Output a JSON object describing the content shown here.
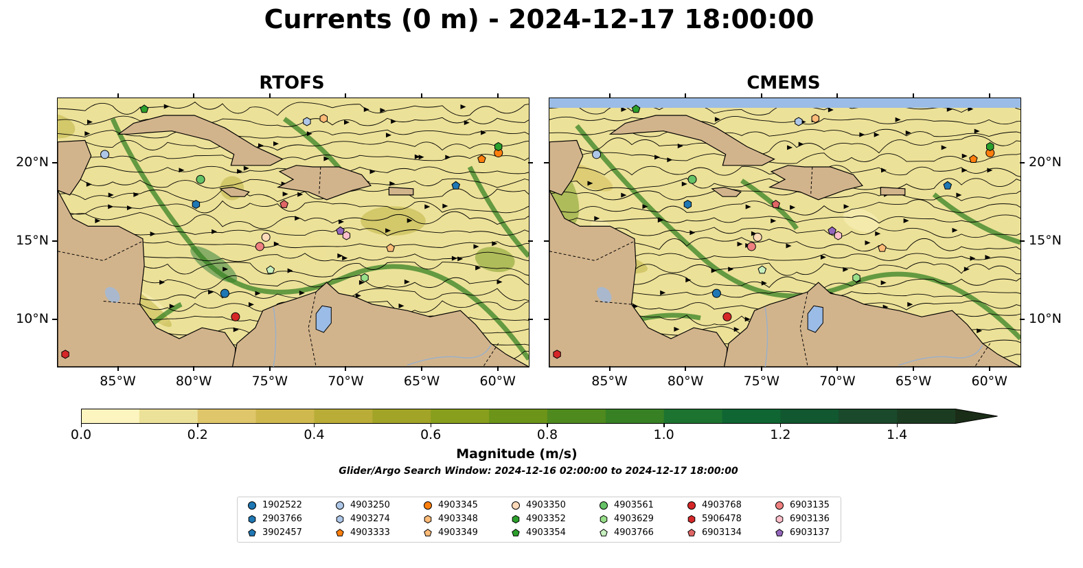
{
  "title": "Currents (0 m) - 2024-12-17 18:00:00",
  "panels": [
    {
      "title": "RTOFS"
    },
    {
      "title": "CMEMS"
    }
  ],
  "map_data": {
    "lon_range": [
      -89,
      -58
    ],
    "lat_range": [
      7,
      24.2
    ],
    "lon_ticks": [
      "85°W",
      "80°W",
      "75°W",
      "70°W",
      "65°W",
      "60°W"
    ],
    "lat_ticks": [
      "20°N",
      "15°N",
      "10°N"
    ],
    "land_color": "#d2b48c",
    "water_color": "#9bbce6"
  },
  "colorbar": {
    "label": "Magnitude (m/s)",
    "ticks": [
      "0.0",
      "0.2",
      "0.4",
      "0.6",
      "0.8",
      "1.0",
      "1.2",
      "1.4"
    ],
    "tick_values": [
      0,
      0.2,
      0.4,
      0.6,
      0.8,
      1.0,
      1.2,
      1.4
    ],
    "range": [
      0,
      1.5
    ],
    "extend": "max",
    "colors": [
      "#fdf5c0",
      "#ece198",
      "#dfc66a",
      "#cfb84e",
      "#b9ad38",
      "#a2a427",
      "#879f1c",
      "#6c9418",
      "#4f8a1f",
      "#378124",
      "#1c7430",
      "#0f6633",
      "#115730",
      "#1a4a2b",
      "#1c3c22",
      "#1a2d17"
    ]
  },
  "search_window": "Glider/Argo Search Window: 2024-12-16 02:00:00 to 2024-12-17 18:00:00",
  "legend": {
    "items": [
      {
        "id": "1902522",
        "marker": "circle",
        "color": "#1f77b4"
      },
      {
        "id": "2903766",
        "marker": "hexagon",
        "color": "#1f77b4"
      },
      {
        "id": "3902457",
        "marker": "pentagon",
        "color": "#1f77b4"
      },
      {
        "id": "4903250",
        "marker": "circle",
        "color": "#aec7e8"
      },
      {
        "id": "4903274",
        "marker": "hexagon",
        "color": "#aec7e8"
      },
      {
        "id": "4903333",
        "marker": "pentagon",
        "color": "#ff7f0e"
      },
      {
        "id": "4903345",
        "marker": "circle",
        "color": "#ff7f0e"
      },
      {
        "id": "4903348",
        "marker": "hexagon",
        "color": "#ffbb78"
      },
      {
        "id": "4903349",
        "marker": "pentagon",
        "color": "#ffbb78"
      },
      {
        "id": "4903350",
        "marker": "circle",
        "color": "#ffdab9"
      },
      {
        "id": "4903352",
        "marker": "hexagon",
        "color": "#2ca02c"
      },
      {
        "id": "4903354",
        "marker": "pentagon",
        "color": "#2ca02c"
      },
      {
        "id": "4903561",
        "marker": "circle",
        "color": "#66c266"
      },
      {
        "id": "4903629",
        "marker": "hexagon",
        "color": "#98df8a"
      },
      {
        "id": "4903766",
        "marker": "pentagon",
        "color": "#c8f0c0"
      },
      {
        "id": "4903768",
        "marker": "circle",
        "color": "#d62728"
      },
      {
        "id": "5906478",
        "marker": "hexagon",
        "color": "#d62728"
      },
      {
        "id": "6903134",
        "marker": "pentagon",
        "color": "#e06666"
      },
      {
        "id": "6903135",
        "marker": "circle",
        "color": "#f08080"
      },
      {
        "id": "6903136",
        "marker": "hexagon",
        "color": "#ffc0cb"
      },
      {
        "id": "6903137",
        "marker": "pentagon",
        "color": "#9467bd"
      }
    ]
  },
  "floats": {
    "rtofs": [
      {
        "id": "1902522",
        "lon": -78.0,
        "lat": 11.7
      },
      {
        "id": "2903766",
        "lon": -79.9,
        "lat": 17.4
      },
      {
        "id": "3902457",
        "lon": -62.8,
        "lat": 18.6
      },
      {
        "id": "4903250",
        "lon": -85.9,
        "lat": 20.6
      },
      {
        "id": "4903274",
        "lon": -72.6,
        "lat": 22.7
      },
      {
        "id": "4903333",
        "lon": -61.1,
        "lat": 20.3
      },
      {
        "id": "4903345",
        "lon": -60.0,
        "lat": 20.7
      },
      {
        "id": "4903348",
        "lon": -71.5,
        "lat": 22.9
      },
      {
        "id": "4903349",
        "lon": -67.1,
        "lat": 14.6
      },
      {
        "id": "4903350",
        "lon": -75.3,
        "lat": 15.3
      },
      {
        "id": "4903352",
        "lon": -60.0,
        "lat": 21.1
      },
      {
        "id": "4903354",
        "lon": -83.3,
        "lat": 23.5
      },
      {
        "id": "4903561",
        "lon": -79.6,
        "lat": 19.0
      },
      {
        "id": "4903629",
        "lon": -68.8,
        "lat": 12.7
      },
      {
        "id": "4903766",
        "lon": -75.0,
        "lat": 13.2
      },
      {
        "id": "4903768",
        "lon": -77.3,
        "lat": 10.2
      },
      {
        "id": "5906478",
        "lon": -88.5,
        "lat": 7.8
      },
      {
        "id": "6903134",
        "lon": -74.1,
        "lat": 17.4
      },
      {
        "id": "6903135",
        "lon": -75.7,
        "lat": 14.7
      },
      {
        "id": "6903136",
        "lon": -70.0,
        "lat": 15.4
      },
      {
        "id": "6903137",
        "lon": -70.4,
        "lat": 15.7
      }
    ],
    "cmems": [
      {
        "id": "1902522",
        "lon": -78.0,
        "lat": 11.7
      },
      {
        "id": "2903766",
        "lon": -79.9,
        "lat": 17.4
      },
      {
        "id": "3902457",
        "lon": -62.8,
        "lat": 18.6
      },
      {
        "id": "4903250",
        "lon": -85.9,
        "lat": 20.6
      },
      {
        "id": "4903274",
        "lon": -72.6,
        "lat": 22.7
      },
      {
        "id": "4903333",
        "lon": -61.1,
        "lat": 20.3
      },
      {
        "id": "4903345",
        "lon": -60.0,
        "lat": 20.7
      },
      {
        "id": "4903348",
        "lon": -71.5,
        "lat": 22.9
      },
      {
        "id": "4903349",
        "lon": -67.1,
        "lat": 14.6
      },
      {
        "id": "4903350",
        "lon": -75.3,
        "lat": 15.3
      },
      {
        "id": "4903352",
        "lon": -60.0,
        "lat": 21.1
      },
      {
        "id": "4903354",
        "lon": -83.3,
        "lat": 23.5
      },
      {
        "id": "4903561",
        "lon": -79.6,
        "lat": 19.0
      },
      {
        "id": "4903629",
        "lon": -68.8,
        "lat": 12.7
      },
      {
        "id": "4903766",
        "lon": -75.0,
        "lat": 13.2
      },
      {
        "id": "4903768",
        "lon": -77.3,
        "lat": 10.2
      },
      {
        "id": "5906478",
        "lon": -88.5,
        "lat": 7.8
      },
      {
        "id": "6903134",
        "lon": -74.1,
        "lat": 17.4
      },
      {
        "id": "6903135",
        "lon": -75.7,
        "lat": 14.7
      },
      {
        "id": "6903136",
        "lon": -70.0,
        "lat": 15.4
      },
      {
        "id": "6903137",
        "lon": -70.4,
        "lat": 15.7
      }
    ]
  }
}
